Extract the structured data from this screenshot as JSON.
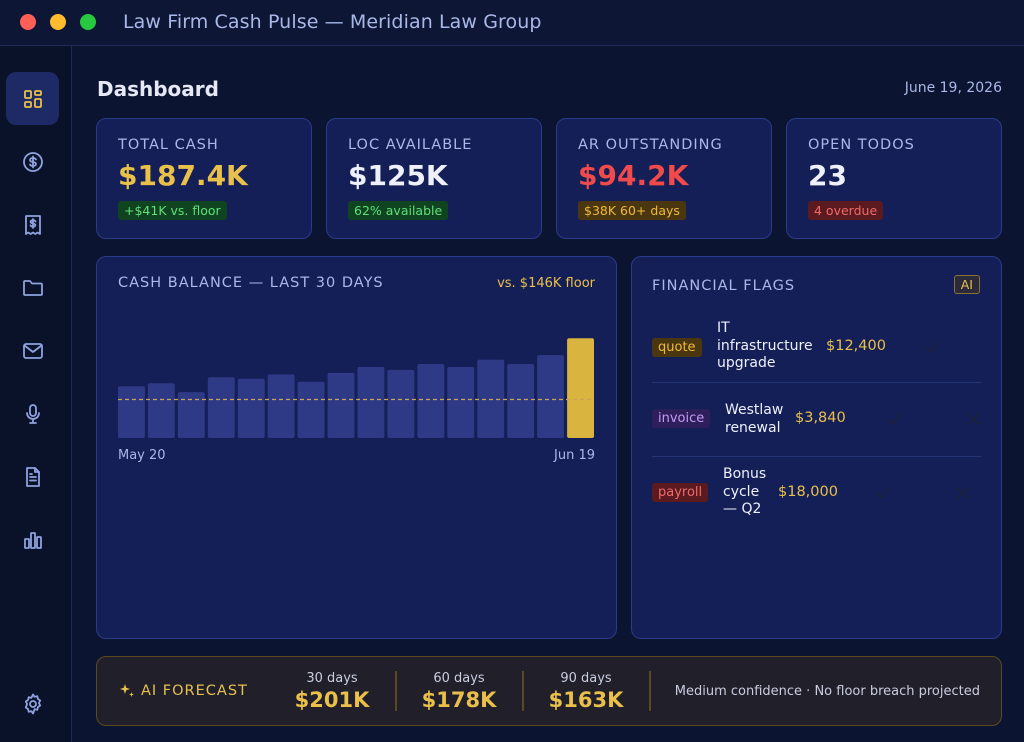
{
  "window": {
    "title": "Law Firm Cash Pulse — Meridian Law Group"
  },
  "sidebar": {
    "items": [
      {
        "icon": "dashboard-icon",
        "active": true
      },
      {
        "icon": "dollar-icon"
      },
      {
        "icon": "receipt-icon"
      },
      {
        "icon": "folder-icon"
      },
      {
        "icon": "mail-icon"
      },
      {
        "icon": "microphone-icon"
      },
      {
        "icon": "document-icon"
      },
      {
        "icon": "bar-chart-icon"
      },
      {
        "icon": "gear-icon"
      }
    ]
  },
  "header": {
    "title": "Dashboard",
    "date": "June 19, 2026"
  },
  "kpis": [
    {
      "label": "TOTAL CASH",
      "value": "$187.4K",
      "badge": "+$41K vs. floor",
      "value_color": "#e9c04a",
      "badge_style": "green"
    },
    {
      "label": "LOC AVAILABLE",
      "value": "$125K",
      "badge": "62% available",
      "value_color": "#eef0fa",
      "badge_style": "green"
    },
    {
      "label": "AR OUTSTANDING",
      "value": "$94.2K",
      "badge": "$38K 60+ days",
      "value_color": "#f04a4a",
      "badge_style": "orange"
    },
    {
      "label": "OPEN TODOS",
      "value": "23",
      "badge": "4 overdue",
      "value_color": "#eef0fa",
      "badge_style": "red"
    }
  ],
  "cash_chart": {
    "title": "CASH BALANCE — LAST 30 DAYS",
    "floor_label": "vs. $146K floor",
    "x_start": "May 20",
    "x_end": "Jun 19"
  },
  "chart_data": {
    "type": "bar",
    "title": "CASH BALANCE — LAST 30 DAYS",
    "x_tick_labels": [
      "May 20",
      "Jun 19"
    ],
    "values": [
      155,
      157,
      151,
      161,
      160,
      163,
      158,
      164,
      168,
      166,
      170,
      168,
      173,
      170,
      176,
      187.4
    ],
    "floor": 146,
    "ylim": [
      120,
      195
    ],
    "highlight_last": true,
    "colors": {
      "bar": "#2e3a85",
      "highlight": "#d9b43e",
      "floor_line": "#c9a45a"
    }
  },
  "flags": {
    "title": "FINANCIAL FLAGS",
    "ai_tag": "AI",
    "items": [
      {
        "type": "quote",
        "desc_lines": [
          "IT",
          "infrastructure",
          "upgrade"
        ],
        "amount": "$12,400",
        "reject": false
      },
      {
        "type": "invoice",
        "desc_lines": [
          "Westlaw",
          "renewal"
        ],
        "amount": "$3,840",
        "reject": true
      },
      {
        "type": "payroll",
        "desc_lines": [
          "Bonus",
          "cycle",
          "— Q2"
        ],
        "amount": "$18,000",
        "reject": true
      }
    ]
  },
  "forecast": {
    "label": "AI FORECAST",
    "periods": [
      {
        "period": "30 days",
        "value": "$201K"
      },
      {
        "period": "60 days",
        "value": "$178K"
      },
      {
        "period": "90 days",
        "value": "$163K"
      }
    ],
    "note": "Medium confidence · No floor breach projected"
  }
}
